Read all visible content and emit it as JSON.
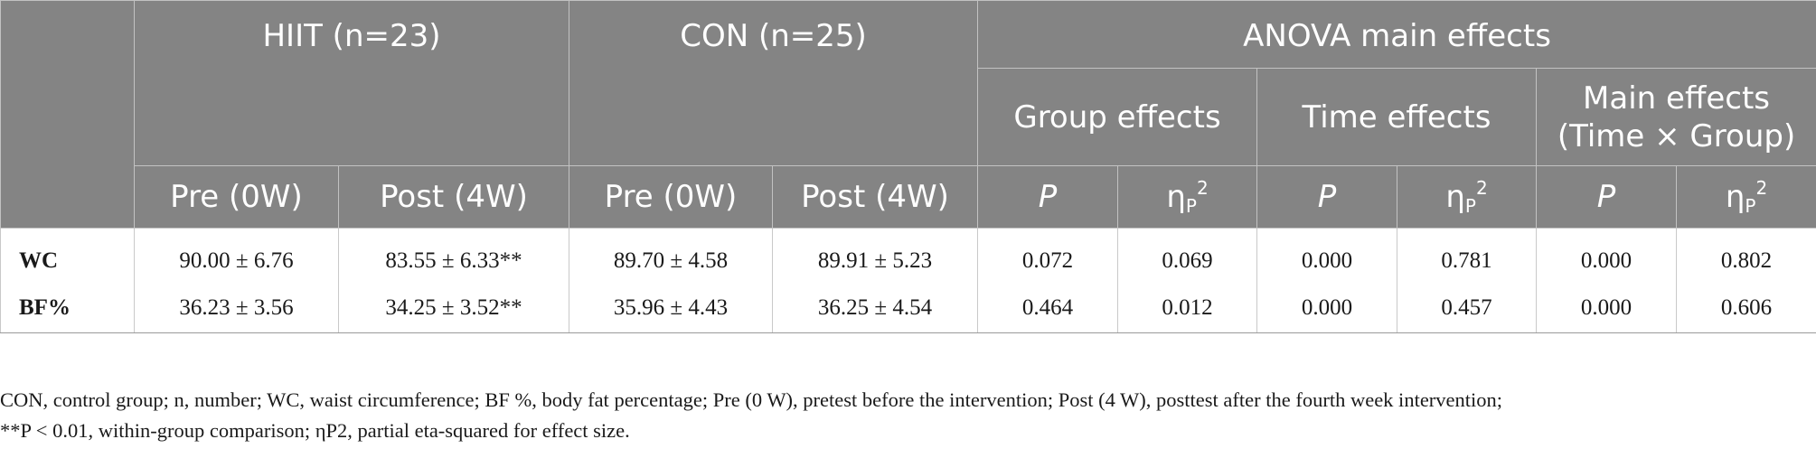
{
  "table": {
    "header": {
      "hiit": "HIIT (n=23)",
      "con": "CON (n=25)",
      "anova": "ANOVA main effects",
      "group_effects": "Group effects",
      "time_effects": "Time effects",
      "interaction_line1": "Main effects",
      "interaction_line2": "(Time × Group)",
      "pre": "Pre (0W)",
      "post": "Post (4W)",
      "p": "P",
      "eta_symbol": "η",
      "eta_sub": "P",
      "eta_sup": "2"
    },
    "rows": [
      {
        "label": "WC",
        "hiit_pre": "90.00 ± 6.76",
        "hiit_post": "83.55 ± 6.33**",
        "con_pre": "89.70 ± 4.58",
        "con_post": "89.91 ± 5.23",
        "group_p": "0.072",
        "group_eta": "0.069",
        "time_p": "0.000",
        "time_eta": "0.781",
        "inter_p": "0.000",
        "inter_eta": "0.802"
      },
      {
        "label": "BF%",
        "hiit_pre": "36.23 ± 3.56",
        "hiit_post": "34.25 ± 3.52**",
        "con_pre": "35.96 ± 4.43",
        "con_post": "36.25 ± 4.54",
        "group_p": "0.464",
        "group_eta": "0.012",
        "time_p": "0.000",
        "time_eta": "0.457",
        "inter_p": "0.000",
        "inter_eta": "0.606"
      }
    ]
  },
  "footnote": {
    "line1": "CON, control group; n, number; WC, waist circumference; BF %, body fat percentage; Pre (0 W), pretest before the intervention; Post (4 W), posttest after the fourth week intervention;",
    "line2": "**P < 0.01, within-group comparison; ηP2, partial eta-squared for effect size."
  },
  "colors": {
    "header_bg": "#848484",
    "header_text": "#ffffff",
    "body_text": "#1a1a1a"
  }
}
